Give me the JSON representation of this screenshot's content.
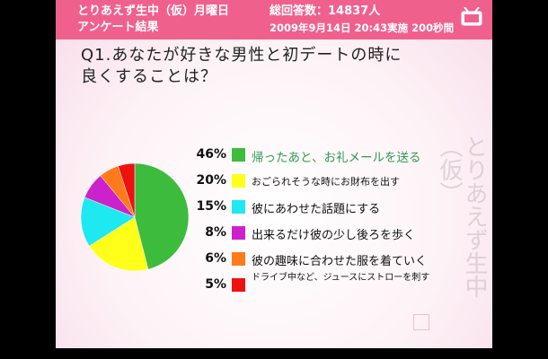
{
  "header": {
    "title_line1": "とりあえず生中（仮）月曜日",
    "title_line2": "アンケート結果",
    "responses": "総回答数：14837人",
    "datetime": "2009年9月14日 20:43実施 200秒間"
  },
  "question": {
    "line1": "Q1.あなたが好きな男性と初デートの時に",
    "line2": "良くすることは？"
  },
  "watermark": "とりあえず生中（仮）",
  "icons": {
    "header": "tv-icon"
  },
  "chart_data": {
    "type": "pie",
    "title": "",
    "categories": [
      "帰ったあと、お礼メールを送る",
      "おごられそうな時にお財布を出す",
      "彼にあわせた話題にする",
      "出来るだけ彼の少し後ろを歩く",
      "彼の趣味に合わせた服を着ていく",
      "ドライブ中など、ジュースにストローを刺す"
    ],
    "values": [
      46,
      20,
      15,
      8,
      6,
      5
    ],
    "labels": [
      "46%",
      "20%",
      "15%",
      "8%",
      "6%",
      "5%"
    ],
    "colors": [
      "#3dbb3d",
      "#ffff1a",
      "#1ee8f0",
      "#cc22cc",
      "#ff7a1a",
      "#ee1111"
    ],
    "legend_position": "right"
  }
}
